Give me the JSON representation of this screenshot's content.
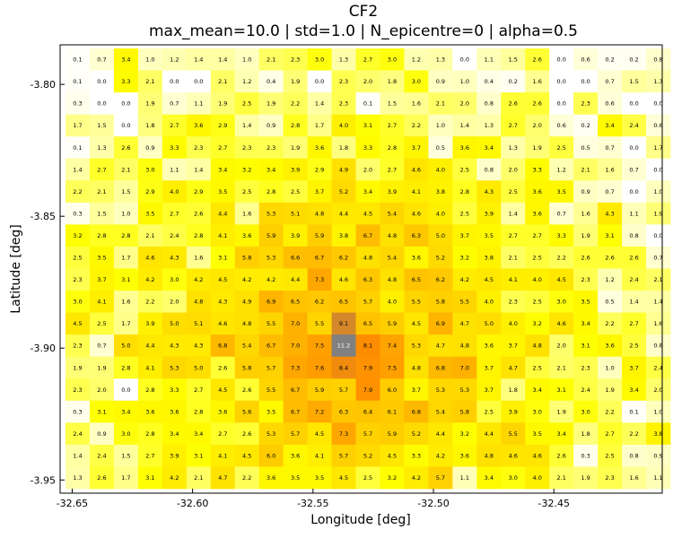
{
  "chart_data": {
    "type": "heatmap",
    "title": "CF2",
    "subtitle": "max_mean=10.0 | std=1.0 | N_epicentre=0 | alpha=0.5",
    "xlabel": "Longitude [deg]",
    "ylabel": "Latitude [deg]",
    "x_ticks": [
      "-32.65",
      "-32.60",
      "-32.55",
      "-32.50",
      "-32.45"
    ],
    "y_ticks": [
      "-3.80",
      "-3.85",
      "-3.90",
      "-3.95"
    ],
    "x_range": [
      -32.655,
      -32.405
    ],
    "y_range": [
      -3.955,
      -3.785
    ],
    "grid": false,
    "colormap": [
      "#ffffff",
      "#ffff00",
      "#ff8c00",
      "#808080"
    ],
    "value_max": 11.2,
    "values": [
      [
        "0.1",
        "0.7",
        "3.4",
        "1.0",
        "1.2",
        "1.4",
        "1.4",
        "1.0",
        "2.1",
        "2.3",
        "3.0",
        "1.3",
        "2.7",
        "3.0",
        "1.2",
        "1.3",
        "0.0",
        "1.1",
        "1.5",
        "2.6",
        "0.0",
        "0.6",
        "0.2",
        "0.2",
        "0.8"
      ],
      [
        "0.1",
        "0.0",
        "3.3",
        "2.1",
        "0.0",
        "0.0",
        "2.1",
        "1.2",
        "0.4",
        "1.9",
        "0.0",
        "2.3",
        "2.0",
        "1.8",
        "3.0",
        "0.9",
        "1.0",
        "0.4",
        "0.2",
        "1.6",
        "0.0",
        "0.0",
        "0.7",
        "1.5",
        "1.3"
      ],
      [
        "0.3",
        "0.0",
        "0.0",
        "1.9",
        "0.7",
        "1.1",
        "1.9",
        "2.5",
        "1.9",
        "2.2",
        "1.4",
        "2.3",
        "0.1",
        "1.5",
        "1.6",
        "2.1",
        "2.0",
        "0.8",
        "2.6",
        "2.6",
        "0.0",
        "2.3",
        "0.6",
        "0.0",
        "0.0"
      ],
      [
        "1.7",
        "1.5",
        "0.0",
        "1.8",
        "2.7",
        "3.6",
        "2.9",
        "1.4",
        "0.9",
        "2.8",
        "1.7",
        "4.0",
        "3.1",
        "2.7",
        "2.2",
        "1.0",
        "1.4",
        "1.3",
        "2.7",
        "2.0",
        "0.6",
        "0.2",
        "3.4",
        "2.4",
        "0.6"
      ],
      [
        "0.1",
        "1.3",
        "2.6",
        "0.9",
        "3.3",
        "2.3",
        "2.7",
        "2.3",
        "2.3",
        "1.9",
        "3.6",
        "1.8",
        "3.3",
        "2.8",
        "3.7",
        "0.5",
        "3.6",
        "3.4",
        "1.3",
        "1.9",
        "2.5",
        "0.5",
        "0.7",
        "0.0",
        "1.7"
      ],
      [
        "1.4",
        "2.7",
        "2.1",
        "3.0",
        "1.1",
        "1.4",
        "3.4",
        "3.2",
        "3.4",
        "3.9",
        "2.9",
        "4.9",
        "2.0",
        "2.7",
        "4.6",
        "4.0",
        "2.5",
        "0.8",
        "2.0",
        "3.3",
        "1.2",
        "2.1",
        "1.6",
        "0.7",
        "0.0"
      ],
      [
        "2.2",
        "2.1",
        "1.5",
        "2.9",
        "4.0",
        "2.9",
        "3.5",
        "2.5",
        "2.8",
        "2.5",
        "3.7",
        "5.2",
        "3.4",
        "3.9",
        "4.1",
        "3.8",
        "2.8",
        "4.3",
        "2.5",
        "3.6",
        "3.5",
        "0.9",
        "0.7",
        "0.0",
        "1.0"
      ],
      [
        "0.3",
        "1.5",
        "1.0",
        "3.5",
        "2.7",
        "2.6",
        "4.4",
        "1.6",
        "5.3",
        "5.1",
        "4.8",
        "4.4",
        "4.5",
        "5.4",
        "4.6",
        "4.0",
        "2.5",
        "3.9",
        "1.4",
        "3.6",
        "0.7",
        "1.6",
        "4.3",
        "1.1",
        "1.9"
      ],
      [
        "3.2",
        "2.8",
        "2.8",
        "2.1",
        "2.4",
        "2.8",
        "4.1",
        "3.6",
        "5.9",
        "3.9",
        "5.9",
        "3.8",
        "6.7",
        "4.8",
        "6.3",
        "5.0",
        "3.7",
        "3.5",
        "2.7",
        "2.7",
        "3.3",
        "1.9",
        "3.1",
        "0.8",
        "0.0"
      ],
      [
        "2.5",
        "3.5",
        "1.7",
        "4.6",
        "4.3",
        "1.6",
        "3.1",
        "5.8",
        "5.3",
        "6.6",
        "6.7",
        "6.2",
        "4.8",
        "5.4",
        "3.6",
        "5.2",
        "3.2",
        "3.8",
        "2.1",
        "2.5",
        "2.2",
        "2.6",
        "2.6",
        "2.6",
        "0.7"
      ],
      [
        "2.3",
        "3.7",
        "3.1",
        "4.2",
        "3.0",
        "4.2",
        "4.5",
        "4.2",
        "4.2",
        "4.4",
        "7.3",
        "4.6",
        "6.3",
        "4.8",
        "6.5",
        "6.2",
        "4.2",
        "4.5",
        "4.1",
        "4.0",
        "4.5",
        "2.3",
        "1.2",
        "2.4",
        "2.1"
      ],
      [
        "3.0",
        "4.1",
        "1.6",
        "2.2",
        "2.0",
        "4.8",
        "4.3",
        "4.9",
        "6.9",
        "6.5",
        "6.2",
        "6.5",
        "5.7",
        "4.0",
        "5.5",
        "5.8",
        "5.5",
        "4.0",
        "2.3",
        "2.5",
        "3.0",
        "3.5",
        "0.5",
        "1.4",
        "1.4"
      ],
      [
        "4.5",
        "2.5",
        "1.7",
        "3.9",
        "5.0",
        "5.1",
        "4.6",
        "4.8",
        "5.5",
        "7.0",
        "5.5",
        "9.1",
        "6.5",
        "5.9",
        "4.5",
        "6.9",
        "4.7",
        "5.0",
        "4.0",
        "3.2",
        "4.6",
        "3.4",
        "2.2",
        "2.7",
        "1.6"
      ],
      [
        "2.3",
        "0.7",
        "5.0",
        "4.4",
        "4.3",
        "4.3",
        "6.8",
        "5.4",
        "6.7",
        "7.0",
        "7.5",
        "11.2",
        "8.1",
        "7.4",
        "5.3",
        "4.7",
        "4.8",
        "3.6",
        "3.7",
        "4.8",
        "2.0",
        "3.1",
        "3.6",
        "2.5",
        "0.8"
      ],
      [
        "1.9",
        "1.9",
        "2.8",
        "4.1",
        "5.3",
        "5.0",
        "2.6",
        "5.8",
        "5.7",
        "7.3",
        "7.6",
        "8.4",
        "7.9",
        "7.5",
        "4.8",
        "6.8",
        "7.0",
        "3.7",
        "4.7",
        "2.5",
        "2.1",
        "2.3",
        "1.0",
        "3.7",
        "2.4"
      ],
      [
        "2.3",
        "2.0",
        "0.0",
        "2.8",
        "3.3",
        "2.7",
        "4.5",
        "2.6",
        "5.5",
        "6.7",
        "5.9",
        "5.7",
        "7.9",
        "6.0",
        "3.7",
        "5.3",
        "5.3",
        "3.7",
        "1.8",
        "3.4",
        "3.1",
        "2.4",
        "1.9",
        "3.4",
        "2.0"
      ],
      [
        "0.3",
        "3.1",
        "3.4",
        "3.6",
        "3.6",
        "2.8",
        "3.6",
        "5.6",
        "3.5",
        "6.7",
        "7.2",
        "6.3",
        "6.4",
        "6.1",
        "6.8",
        "5.4",
        "5.8",
        "2.5",
        "3.9",
        "3.0",
        "1.9",
        "3.0",
        "2.2",
        "0.1",
        "1.0"
      ],
      [
        "2.4",
        "0.9",
        "3.0",
        "2.8",
        "3.4",
        "3.4",
        "2.7",
        "2.6",
        "5.3",
        "5.7",
        "4.5",
        "7.3",
        "5.7",
        "5.9",
        "5.2",
        "4.4",
        "3.2",
        "4.4",
        "5.5",
        "3.5",
        "3.4",
        "1.8",
        "2.7",
        "2.2",
        "3.8"
      ],
      [
        "1.4",
        "2.4",
        "1.5",
        "2.7",
        "3.9",
        "3.1",
        "4.1",
        "4.5",
        "6.0",
        "3.6",
        "4.1",
        "5.7",
        "5.2",
        "4.5",
        "3.3",
        "4.2",
        "3.6",
        "4.8",
        "4.6",
        "4.6",
        "2.6",
        "0.3",
        "2.5",
        "0.8",
        "0.9"
      ],
      [
        "1.3",
        "2.6",
        "1.7",
        "3.1",
        "4.2",
        "2.1",
        "4.7",
        "2.2",
        "3.6",
        "3.5",
        "3.5",
        "4.5",
        "2.5",
        "3.2",
        "4.2",
        "5.7",
        "1.1",
        "3.4",
        "3.0",
        "4.0",
        "2.1",
        "1.9",
        "2.3",
        "1.6",
        "1.1"
      ]
    ]
  }
}
